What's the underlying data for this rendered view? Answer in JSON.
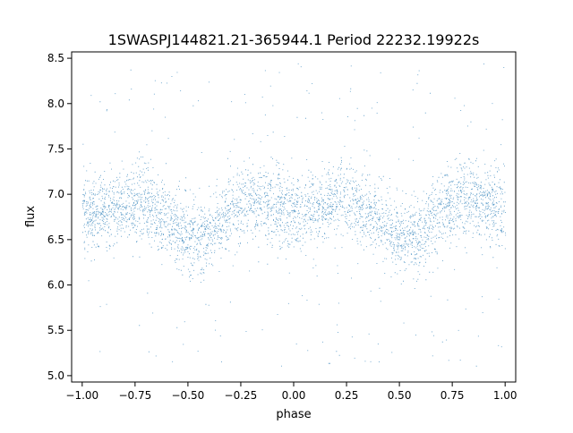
{
  "chart_data": {
    "type": "scatter",
    "title": "1SWASPJ144821.21-365944.1 Period 22232.19922s",
    "xlabel": "phase",
    "ylabel": "flux",
    "xlim": [
      -1.05,
      1.05
    ],
    "ylim": [
      4.93,
      8.57
    ],
    "x_ticks": [
      "-1.00",
      "-0.75",
      "-0.50",
      "-0.25",
      "0.00",
      "0.25",
      "0.50",
      "0.75",
      "1.00"
    ],
    "y_ticks": [
      "5.0",
      "5.5",
      "6.0",
      "6.5",
      "7.0",
      "7.5",
      "8.0",
      "8.5"
    ],
    "grid": false,
    "legend": "none",
    "series": [
      {
        "color": "#1f77b4",
        "x_range": [
          -1.0,
          1.0
        ],
        "mean_curve": {
          "x": [
            -1.0,
            -0.9,
            -0.8,
            -0.7,
            -0.6,
            -0.5,
            -0.4,
            -0.3,
            -0.2,
            -0.1,
            0.0,
            0.1,
            0.2,
            0.3,
            0.4,
            0.5,
            0.6,
            0.7,
            0.8,
            0.9,
            1.0
          ],
          "y": [
            6.75,
            6.82,
            6.9,
            6.9,
            6.72,
            6.5,
            6.55,
            6.82,
            6.95,
            6.9,
            6.78,
            6.82,
            6.95,
            6.92,
            6.75,
            6.5,
            6.55,
            6.85,
            6.95,
            6.9,
            6.75
          ]
        },
        "core_scatter_sd": 0.2,
        "outlier_range": [
          5.1,
          8.45
        ],
        "approx_point_count": 26000
      }
    ]
  }
}
